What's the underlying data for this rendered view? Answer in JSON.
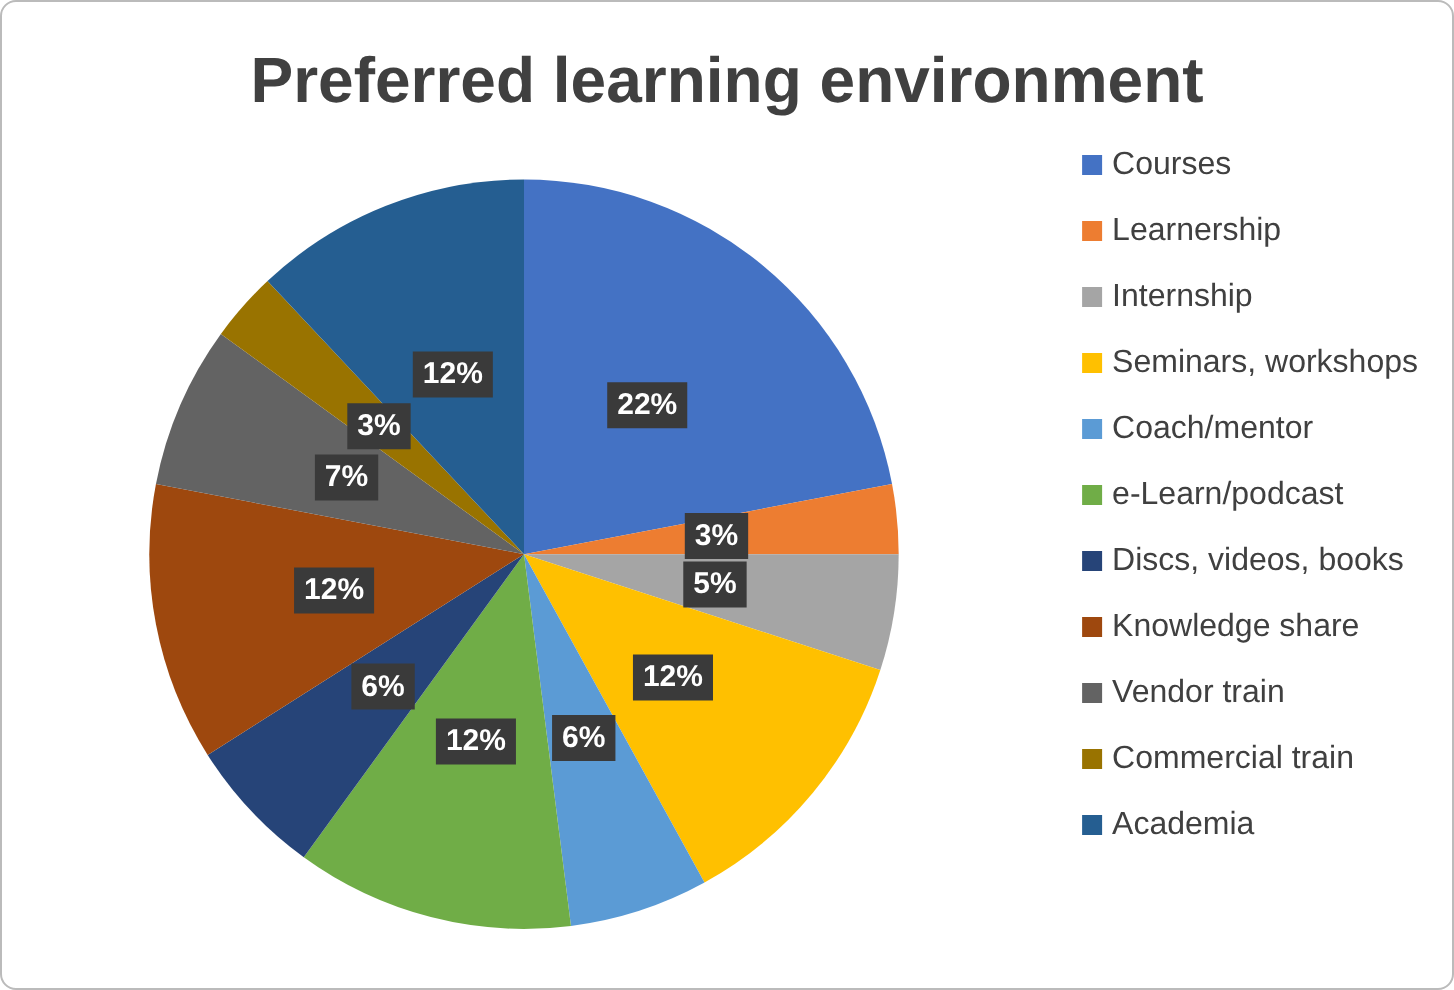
{
  "chart_data": {
    "type": "pie",
    "title": "Preferred learning environment",
    "categories": [
      "Courses",
      "Learnership",
      "Internship",
      "Seminars, workshops",
      "Coach/mentor",
      "e-Learn/podcast",
      "Discs, videos, books",
      "Knowledge share",
      "Vendor train",
      "Commercial train",
      "Academia"
    ],
    "values": [
      22,
      3,
      5,
      12,
      6,
      12,
      6,
      12,
      7,
      3,
      12
    ],
    "colors": [
      "#4472c4",
      "#ed7d31",
      "#a5a5a5",
      "#ffc000",
      "#5b9bd5",
      "#70ad47",
      "#264478",
      "#9e480e",
      "#636363",
      "#997300",
      "#255e91"
    ],
    "value_labels": [
      "22%",
      "3%",
      "5%",
      "12%",
      "6%",
      "12%",
      "6%",
      "12%",
      "7%",
      "3%",
      "12%"
    ],
    "legend": "right"
  }
}
